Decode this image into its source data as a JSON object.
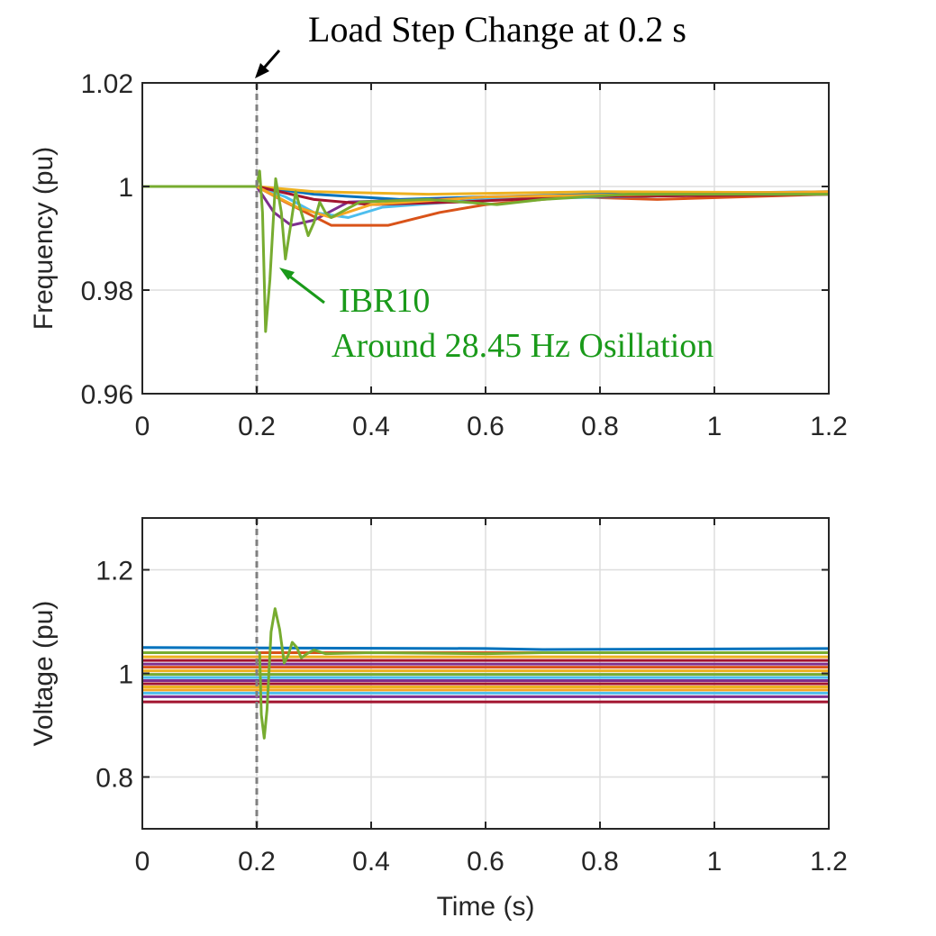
{
  "figure": {
    "top_annotation": "Load Step Change at 0.2 s",
    "ibr_label": "IBR10",
    "ibr_caption": "Around 28.45 Hz Osillation",
    "annotation_color": "#1a9a1a"
  },
  "chart_data": [
    {
      "type": "line",
      "title": "",
      "xlabel": "",
      "ylabel": "Frequency (pu)",
      "xlim": [
        0,
        1.2
      ],
      "ylim": [
        0.96,
        1.02
      ],
      "xticks": [
        "0",
        "0.2",
        "0.4",
        "0.6",
        "0.8",
        "1",
        "1.2"
      ],
      "yticks": [
        "0.96",
        "0.98",
        "1",
        "1.02"
      ],
      "grid": true,
      "event_line_x": 0.2,
      "series": [
        {
          "color": "#0072bd",
          "values": [
            [
              0,
              1
            ],
            [
              0.2,
              1
            ],
            [
              0.3,
              0.9985
            ],
            [
              0.45,
              0.9975
            ],
            [
              0.6,
              0.998
            ],
            [
              0.8,
              0.9985
            ],
            [
              1.2,
              0.999
            ]
          ]
        },
        {
          "color": "#d95319",
          "values": [
            [
              0,
              1
            ],
            [
              0.2,
              1
            ],
            [
              0.25,
              0.997
            ],
            [
              0.33,
              0.9925
            ],
            [
              0.43,
              0.9925
            ],
            [
              0.52,
              0.995
            ],
            [
              0.6,
              0.9965
            ],
            [
              0.75,
              0.998
            ],
            [
              0.9,
              0.9975
            ],
            [
              1.2,
              0.9985
            ]
          ]
        },
        {
          "color": "#edb120",
          "values": [
            [
              0,
              1
            ],
            [
              0.2,
              1
            ],
            [
              0.3,
              0.999
            ],
            [
              0.5,
              0.9985
            ],
            [
              0.8,
              0.999
            ],
            [
              1.2,
              0.9988
            ]
          ]
        },
        {
          "color": "#7e2f8e",
          "values": [
            [
              0,
              1
            ],
            [
              0.2,
              1
            ],
            [
              0.23,
              0.995
            ],
            [
              0.26,
              0.9925
            ],
            [
              0.3,
              0.9935
            ],
            [
              0.36,
              0.997
            ],
            [
              0.5,
              0.9975
            ],
            [
              0.7,
              0.998
            ],
            [
              1.2,
              0.9985
            ]
          ]
        },
        {
          "color": "#4dbeee",
          "values": [
            [
              0,
              1
            ],
            [
              0.2,
              1
            ],
            [
              0.25,
              0.998
            ],
            [
              0.3,
              0.995
            ],
            [
              0.36,
              0.994
            ],
            [
              0.42,
              0.996
            ],
            [
              0.6,
              0.9975
            ],
            [
              1.2,
              0.9988
            ]
          ]
        },
        {
          "color": "#a2142f",
          "values": [
            [
              0,
              1
            ],
            [
              0.2,
              1
            ],
            [
              0.3,
              0.9975
            ],
            [
              0.4,
              0.9965
            ],
            [
              0.55,
              0.997
            ],
            [
              0.75,
              0.998
            ],
            [
              1.2,
              0.9985
            ]
          ]
        },
        {
          "color": "#f5a623",
          "values": [
            [
              0,
              1
            ],
            [
              0.2,
              1
            ],
            [
              0.27,
              0.996
            ],
            [
              0.33,
              0.994
            ],
            [
              0.4,
              0.9965
            ],
            [
              0.6,
              0.998
            ],
            [
              1.2,
              0.999
            ]
          ]
        },
        {
          "color": "#77ac30",
          "values": [
            [
              0,
              1
            ],
            [
              0.2,
              1
            ],
            [
              0.205,
              1.003
            ],
            [
              0.21,
              0.995
            ],
            [
              0.2155,
              0.972
            ],
            [
              0.223,
              0.982
            ],
            [
              0.233,
              1.0015
            ],
            [
              0.243,
              0.995
            ],
            [
              0.25,
              0.986
            ],
            [
              0.26,
              0.993
            ],
            [
              0.268,
              0.999
            ],
            [
              0.278,
              0.995
            ],
            [
              0.29,
              0.9905
            ],
            [
              0.3,
              0.993
            ],
            [
              0.31,
              0.997
            ],
            [
              0.32,
              0.995
            ],
            [
              0.33,
              0.994
            ],
            [
              0.38,
              0.997
            ],
            [
              0.5,
              0.9975
            ],
            [
              0.62,
              0.9965
            ],
            [
              0.7,
              0.9975
            ],
            [
              0.85,
              0.9985
            ],
            [
              1.2,
              0.9985
            ]
          ]
        }
      ]
    },
    {
      "type": "line",
      "title": "",
      "xlabel": "Time (s)",
      "ylabel": "Voltage (pu)",
      "xlim": [
        0,
        1.2
      ],
      "ylim": [
        0.7,
        1.3
      ],
      "xticks": [
        "0",
        "0.2",
        "0.4",
        "0.6",
        "0.8",
        "1",
        "1.2"
      ],
      "yticks": [
        "0.8",
        "1",
        "1.2"
      ],
      "grid": true,
      "event_line_x": 0.2,
      "series": [
        {
          "color": "#0072bd",
          "values": [
            [
              0,
              1.05
            ],
            [
              0.6,
              1.048
            ],
            [
              0.7,
              1.046
            ],
            [
              1.2,
              1.048
            ]
          ]
        },
        {
          "color": "#d95319",
          "values": [
            [
              0,
              1.04
            ],
            [
              1.2,
              1.04
            ]
          ]
        },
        {
          "color": "#edb120",
          "values": [
            [
              0,
              1.032
            ],
            [
              1.2,
              1.032
            ]
          ]
        },
        {
          "color": "#a2142f",
          "values": [
            [
              0,
              1.025
            ],
            [
              1.2,
              1.025
            ]
          ]
        },
        {
          "color": "#7e2f8e",
          "values": [
            [
              0,
              1.018
            ],
            [
              1.2,
              1.018
            ]
          ]
        },
        {
          "color": "#d95319",
          "values": [
            [
              0,
              1.012
            ],
            [
              1.2,
              1.012
            ]
          ]
        },
        {
          "color": "#edb120",
          "values": [
            [
              0,
              1.005
            ],
            [
              1.2,
              1.005
            ]
          ]
        },
        {
          "color": "#77ac30",
          "values": [
            [
              0,
              0.998
            ],
            [
              1.2,
              0.998
            ]
          ]
        },
        {
          "color": "#4dbeee",
          "values": [
            [
              0,
              0.992
            ],
            [
              1.2,
              0.992
            ]
          ]
        },
        {
          "color": "#7e2f8e",
          "values": [
            [
              0,
              0.986
            ],
            [
              1.2,
              0.986
            ]
          ]
        },
        {
          "color": "#a2142f",
          "values": [
            [
              0,
              0.98
            ],
            [
              1.2,
              0.98
            ]
          ]
        },
        {
          "color": "#edb120",
          "values": [
            [
              0,
              0.974
            ],
            [
              1.2,
              0.974
            ]
          ]
        },
        {
          "color": "#f5a623",
          "values": [
            [
              0,
              0.968
            ],
            [
              1.2,
              0.968
            ]
          ]
        },
        {
          "color": "#4dbeee",
          "values": [
            [
              0,
              0.962
            ],
            [
              1.2,
              0.962
            ]
          ]
        },
        {
          "color": "#7e2f8e",
          "values": [
            [
              0,
              0.955
            ],
            [
              1.2,
              0.955
            ]
          ]
        },
        {
          "color": "#a2142f",
          "values": [
            [
              0,
              0.945
            ],
            [
              1.2,
              0.945
            ]
          ]
        },
        {
          "color": "#77ac30",
          "values": [
            [
              0,
              1.04
            ],
            [
              0.2,
              1.04
            ],
            [
              0.205,
              1.04
            ],
            [
              0.208,
              0.92
            ],
            [
              0.213,
              0.875
            ],
            [
              0.218,
              0.93
            ],
            [
              0.225,
              1.08
            ],
            [
              0.232,
              1.125
            ],
            [
              0.24,
              1.085
            ],
            [
              0.248,
              1.02
            ],
            [
              0.255,
              1.035
            ],
            [
              0.262,
              1.06
            ],
            [
              0.27,
              1.05
            ],
            [
              0.278,
              1.03
            ],
            [
              0.288,
              1.038
            ],
            [
              0.3,
              1.045
            ],
            [
              0.32,
              1.038
            ],
            [
              0.4,
              1.04
            ],
            [
              0.6,
              1.038
            ],
            [
              0.7,
              1.04
            ],
            [
              1.2,
              1.04
            ]
          ]
        }
      ]
    }
  ]
}
